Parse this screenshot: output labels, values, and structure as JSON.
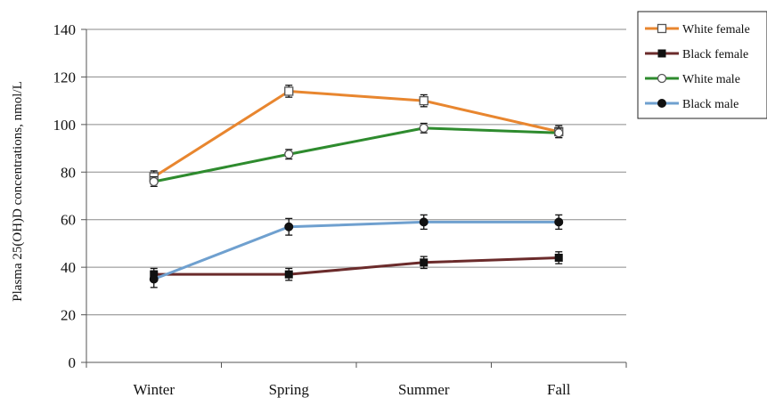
{
  "chart_data": {
    "type": "line",
    "title": "",
    "xlabel": "",
    "ylabel": "Plasma 25(OH)D concentrations, nmol/L",
    "categories": [
      "Winter",
      "Spring",
      "Summer",
      "Fall"
    ],
    "ylim": [
      0,
      140
    ],
    "yticks": [
      0,
      20,
      40,
      60,
      80,
      100,
      120,
      140
    ],
    "grid": true,
    "legend_position": "top-right",
    "series": [
      {
        "name": "White female",
        "color": "#e8862f",
        "marker": "open-square",
        "values": [
          78,
          114,
          110,
          97
        ],
        "error": [
          2.5,
          2.5,
          2.5,
          2.5
        ]
      },
      {
        "name": "Black female",
        "color": "#6b2b2b",
        "marker": "filled-square",
        "values": [
          37,
          37,
          42,
          44
        ],
        "error": [
          2.5,
          2.5,
          2.5,
          2.5
        ]
      },
      {
        "name": "White male",
        "color": "#2e8b2e",
        "marker": "open-circle",
        "values": [
          76,
          87.5,
          98.5,
          96.5
        ],
        "error": [
          2,
          2,
          2,
          2
        ]
      },
      {
        "name": "Black male",
        "color": "#6fa0cf",
        "marker": "filled-circle",
        "values": [
          35,
          57,
          59,
          59
        ],
        "error": [
          3.5,
          3.5,
          3,
          3
        ]
      }
    ]
  }
}
